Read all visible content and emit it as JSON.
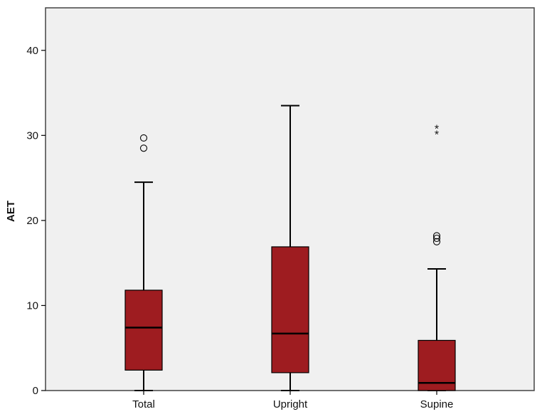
{
  "colors": {
    "plot_background": "#f0f0f0",
    "box_fill": "#9e1c20",
    "line": "#000000",
    "frame": "#444444"
  },
  "chart_data": {
    "type": "boxplot",
    "title": "",
    "xlabel": "",
    "ylabel": "AET",
    "ylim": [
      0,
      45
    ],
    "yticks": [
      0,
      10,
      20,
      30,
      40
    ],
    "grid": false,
    "legend": "none",
    "categories": [
      "Total",
      "Upright",
      "Supine"
    ],
    "boxes": [
      {
        "category": "Total",
        "whisker_low": 0,
        "q1": 2.4,
        "median": 7.4,
        "q3": 11.8,
        "whisker_high": 24.5,
        "outliers_circle": [
          28.5,
          29.7
        ],
        "outliers_star": []
      },
      {
        "category": "Upright",
        "whisker_low": 0,
        "q1": 2.1,
        "median": 6.7,
        "q3": 16.9,
        "whisker_high": 33.5,
        "outliers_circle": [],
        "outliers_star": []
      },
      {
        "category": "Supine",
        "whisker_low": 0,
        "q1": 0,
        "median": 0.9,
        "q3": 5.9,
        "whisker_high": 14.3,
        "outliers_circle": [
          17.5,
          17.9,
          18.2
        ],
        "outliers_star": [
          30.3,
          31.0
        ]
      }
    ]
  }
}
